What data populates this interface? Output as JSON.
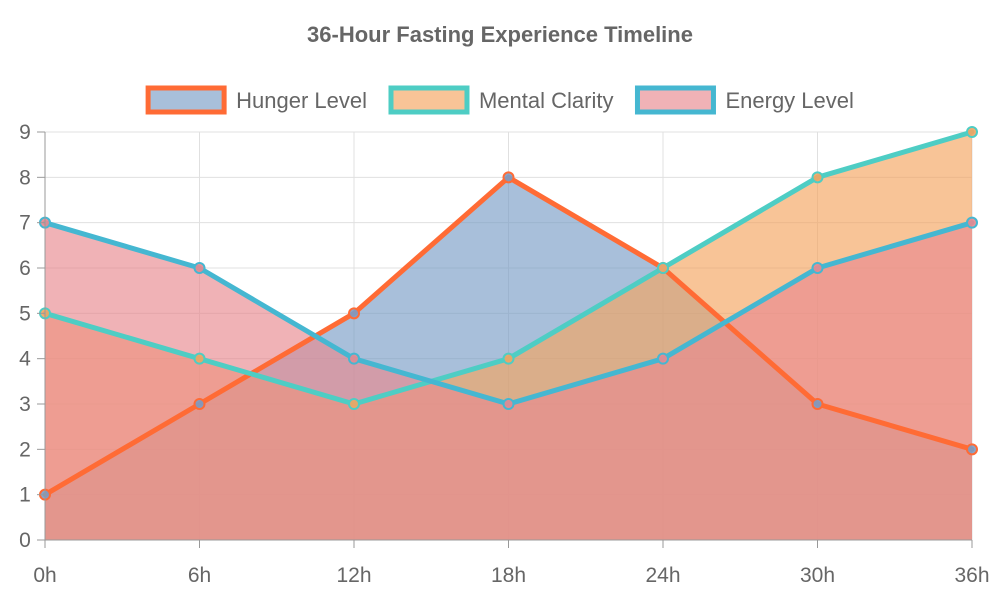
{
  "chart_data": {
    "type": "area",
    "title": "36-Hour Fasting Experience Timeline",
    "categories": [
      "0h",
      "6h",
      "12h",
      "18h",
      "24h",
      "30h",
      "36h"
    ],
    "ylim": [
      0,
      9
    ],
    "yticks": [
      0,
      1,
      2,
      3,
      4,
      5,
      6,
      7,
      8,
      9
    ],
    "grid": true,
    "legend_position": "top",
    "series": [
      {
        "name": "Hunger Level",
        "values": [
          1,
          3,
          5,
          8,
          6,
          3,
          2
        ],
        "line_color": "#FF6B35",
        "fill_color": "#7A9CC6",
        "fill_opacity": 0.65
      },
      {
        "name": "Mental Clarity",
        "values": [
          5,
          4,
          3,
          4,
          6,
          8,
          9
        ],
        "line_color": "#4ECDC4",
        "fill_color": "#F4A460",
        "fill_opacity": 0.65
      },
      {
        "name": "Energy Level",
        "values": [
          7,
          6,
          4,
          3,
          4,
          6,
          7
        ],
        "line_color": "#45B7D1",
        "fill_color": "#E8888F",
        "fill_opacity": 0.65
      }
    ]
  }
}
